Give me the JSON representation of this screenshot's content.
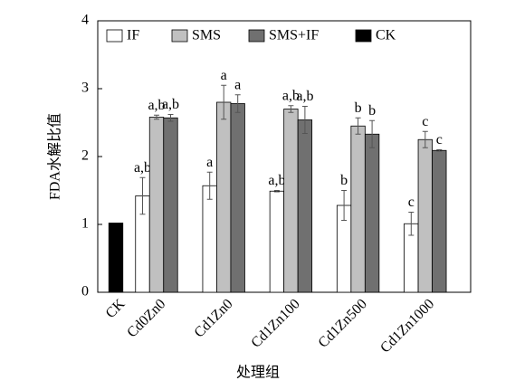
{
  "chart_data": {
    "type": "bar",
    "y_label": "FDA水解比值",
    "x_label": "处理组",
    "categories": [
      "CK",
      "Cd0Zn0",
      "Cd1Zn0",
      "Cd1Zn100",
      "Cd1Zn500",
      "Cd1Zn1000"
    ],
    "series": [
      {
        "name": "IF",
        "color": "#ffffff",
        "values": [
          null,
          1.42,
          1.57,
          1.49,
          1.28,
          1.01
        ],
        "errors": [
          null,
          0.27,
          0.2,
          0.01,
          0.22,
          0.17
        ],
        "labels": [
          null,
          "a,b",
          "a",
          "a,b",
          "b",
          "c"
        ]
      },
      {
        "name": "SMS",
        "color": "#c0c0c0",
        "values": [
          null,
          2.58,
          2.8,
          2.7,
          2.45,
          2.25
        ],
        "errors": [
          null,
          0.03,
          0.25,
          0.05,
          0.12,
          0.12
        ],
        "labels": [
          null,
          "a,b",
          "a",
          "a,b",
          "b",
          "c"
        ]
      },
      {
        "name": "SMS+IF",
        "color": "#707070",
        "values": [
          null,
          2.57,
          2.78,
          2.54,
          2.33,
          2.09
        ],
        "errors": [
          null,
          0.05,
          0.13,
          0.2,
          0.2,
          0.01
        ],
        "labels": [
          null,
          "a,b",
          "a",
          "a,b",
          "b",
          "c"
        ]
      },
      {
        "name": "CK",
        "color": "#000000",
        "values": [
          1.02,
          null,
          null,
          null,
          null,
          null
        ],
        "errors": [
          null,
          null,
          null,
          null,
          null,
          null
        ],
        "labels": [
          null,
          null,
          null,
          null,
          null,
          null
        ]
      }
    ],
    "ylim": [
      0,
      4
    ],
    "yticks": [
      0,
      1,
      2,
      3,
      4
    ],
    "legend": "top"
  }
}
